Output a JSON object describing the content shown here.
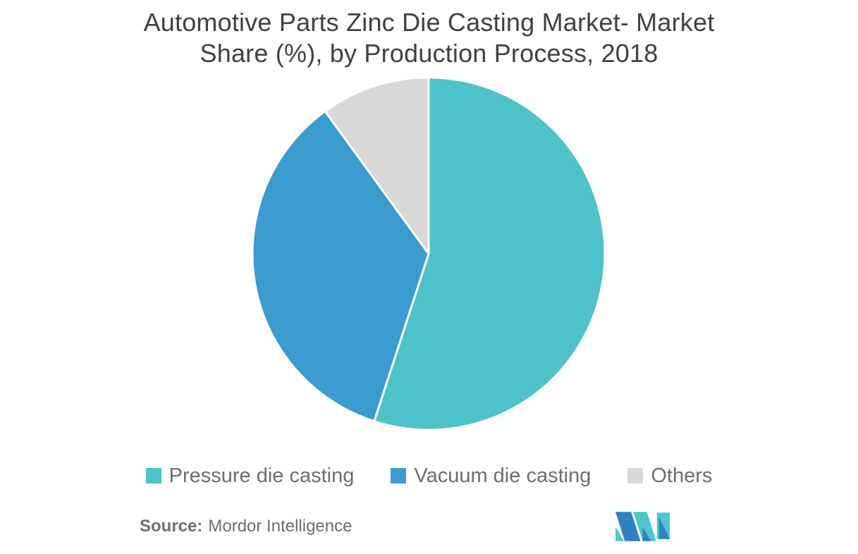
{
  "title": {
    "line1": "Automotive Parts Zinc Die Casting Market- Market",
    "line2": "Share (%), by Production Process, 2018"
  },
  "chart_data": {
    "type": "pie",
    "title": "Automotive Parts Zinc Die Casting Market- Market Share (%), by Production Process, 2018",
    "categories": [
      "Pressure die casting",
      "Vacuum die casting",
      "Others"
    ],
    "values": [
      55,
      35,
      10
    ],
    "unit": "%",
    "colors": [
      "#4ec2c9",
      "#3a9cce",
      "#d8d8d8"
    ],
    "start_angle_deg": 0,
    "direction": "clockwise",
    "slice_border_color": "#ffffff",
    "slice_border_width": 3,
    "legend_position": "bottom",
    "data_labels": "none"
  },
  "legend": {
    "items": [
      {
        "label": "Pressure die casting",
        "color": "#4ec2c9"
      },
      {
        "label": "Vacuum die casting",
        "color": "#3a9cce"
      },
      {
        "label": "Others",
        "color": "#d8d8d8"
      }
    ]
  },
  "source": {
    "label": "Source:",
    "text": "Mordor Intelligence"
  },
  "logo": {
    "name": "mordor-intelligence-logo",
    "teal": "#4dc7ce",
    "blue": "#2f82c0"
  },
  "colors": {
    "title_text": "#414042",
    "body_text": "#6d6e71",
    "background": "#ffffff"
  }
}
